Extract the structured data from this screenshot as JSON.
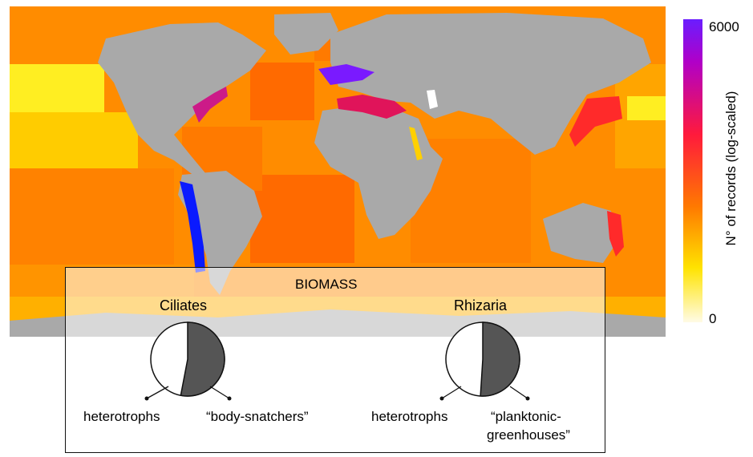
{
  "colorbar": {
    "max_label": "6000",
    "min_label": "0",
    "title": "N° of records (log-scaled)"
  },
  "inset": {
    "title": "BIOMASS",
    "groups": [
      {
        "name": "Ciliates",
        "heterotroph_fraction": 0.47,
        "heterotroph_label": "heterotrophs",
        "other_label": "“body-snatchers”"
      },
      {
        "name": "Rhizaria",
        "heterotroph_fraction": 0.49,
        "heterotroph_label": "heterotrophs",
        "other_label_line1": "“planktonic-",
        "other_label_line2": "greenhouses”"
      }
    ]
  },
  "colors": {
    "ocean_default": "#ff8c00",
    "land": "#a9a9a9",
    "highest": "#6a1dff",
    "pie_other": "#555555",
    "pie_heterotroph": "#ffffff"
  }
}
